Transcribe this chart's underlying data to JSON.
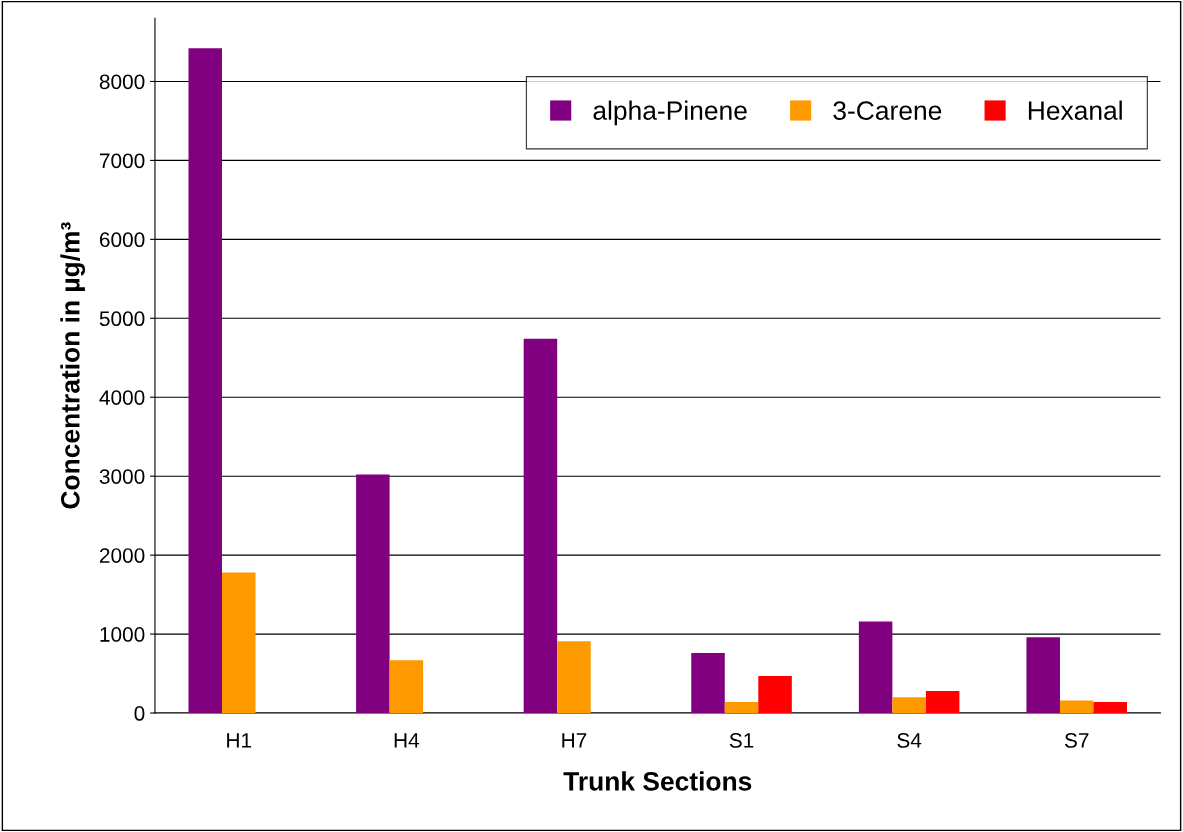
{
  "chart_data": {
    "type": "bar",
    "xlabel": "Trunk Sections",
    "ylabel": "Concentration in µg/m³",
    "categories": [
      "H1",
      "H4",
      "H7",
      "S1",
      "S4",
      "S7"
    ],
    "series": [
      {
        "name": "alpha-Pinene",
        "color": "#800080",
        "values": [
          8420,
          3020,
          4740,
          760,
          1160,
          960
        ]
      },
      {
        "name": "3-Carene",
        "color": "#ff9900",
        "values": [
          1780,
          670,
          910,
          140,
          200,
          160
        ]
      },
      {
        "name": "Hexanal",
        "color": "#ff0000",
        "values": [
          null,
          null,
          null,
          470,
          280,
          140
        ]
      }
    ],
    "ylim": [
      0,
      8800
    ],
    "yticks": [
      0,
      1000,
      2000,
      3000,
      4000,
      5000,
      6000,
      7000,
      8000
    ],
    "grid": "y",
    "legend": "top right"
  }
}
